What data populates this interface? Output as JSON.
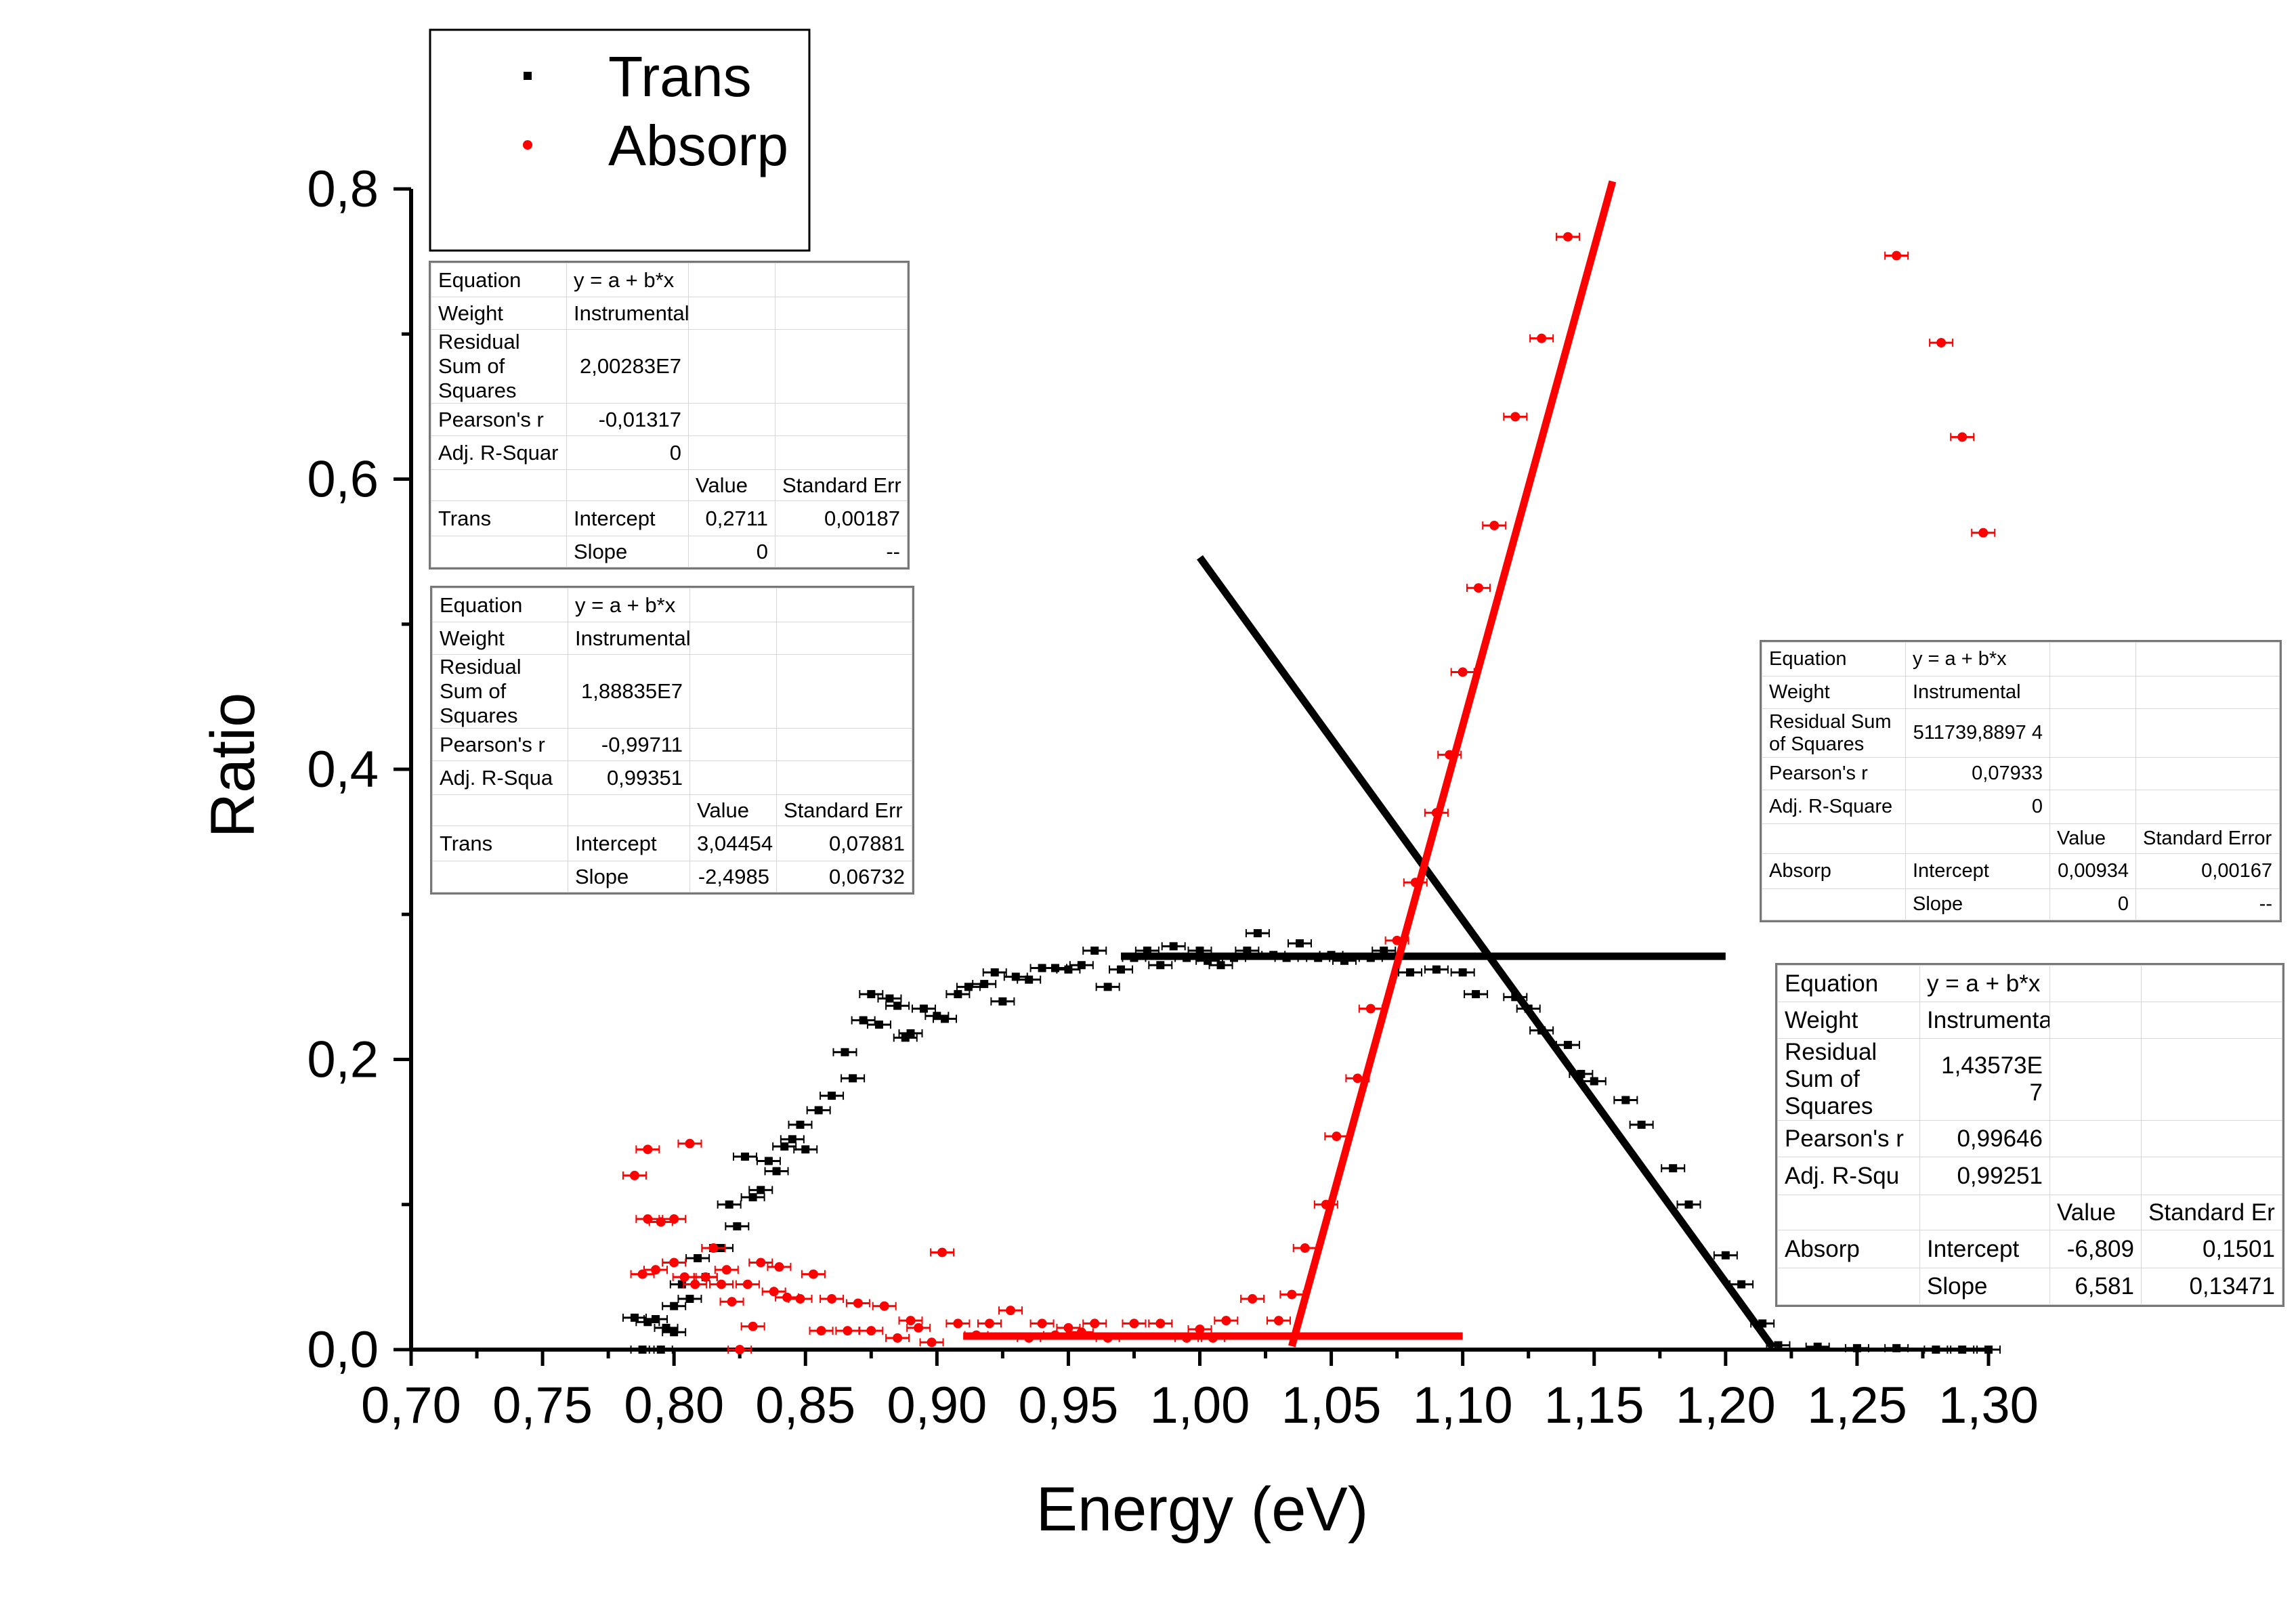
{
  "chart_data": {
    "type": "scatter",
    "title": "",
    "xlabel": "Energy (eV)",
    "ylabel": "Ratio",
    "xlim": [
      0.7,
      1.3
    ],
    "ylim": [
      0.0,
      0.8
    ],
    "x_ticks": [
      {
        "v": 0.7,
        "label": "0,70"
      },
      {
        "v": 0.75,
        "label": "0,75"
      },
      {
        "v": 0.8,
        "label": "0,80"
      },
      {
        "v": 0.85,
        "label": "0,85"
      },
      {
        "v": 0.9,
        "label": "0,90"
      },
      {
        "v": 0.95,
        "label": "0,95"
      },
      {
        "v": 1.0,
        "label": "1,00"
      },
      {
        "v": 1.05,
        "label": "1,05"
      },
      {
        "v": 1.1,
        "label": "1,10"
      },
      {
        "v": 1.15,
        "label": "1,15"
      },
      {
        "v": 1.2,
        "label": "1,20"
      },
      {
        "v": 1.25,
        "label": "1,25"
      },
      {
        "v": 1.3,
        "label": "1,30"
      }
    ],
    "y_ticks": [
      {
        "v": 0.0,
        "label": "0,0"
      },
      {
        "v": 0.2,
        "label": "0,2"
      },
      {
        "v": 0.4,
        "label": "0,4"
      },
      {
        "v": 0.6,
        "label": "0,6"
      },
      {
        "v": 0.8,
        "label": "0,8"
      }
    ],
    "legend": {
      "placement": "top-left",
      "entries": [
        {
          "label": "Trans",
          "color": "#000000"
        },
        {
          "label": "Absorp",
          "color": "#ff0000"
        }
      ]
    },
    "series": [
      {
        "name": "Trans",
        "color": "#000000",
        "points": [
          [
            0.785,
            0.022
          ],
          [
            0.788,
            0.0
          ],
          [
            0.79,
            0.019
          ],
          [
            0.793,
            0.021
          ],
          [
            0.795,
            0.0
          ],
          [
            0.797,
            0.015
          ],
          [
            0.8,
            0.012
          ],
          [
            0.8,
            0.03
          ],
          [
            0.803,
            0.045
          ],
          [
            0.806,
            0.035
          ],
          [
            0.809,
            0.063
          ],
          [
            0.812,
            0.05
          ],
          [
            0.815,
            0.07
          ],
          [
            0.818,
            0.07
          ],
          [
            0.821,
            0.1
          ],
          [
            0.824,
            0.085
          ],
          [
            0.827,
            0.133
          ],
          [
            0.83,
            0.105
          ],
          [
            0.833,
            0.11
          ],
          [
            0.836,
            0.13
          ],
          [
            0.839,
            0.123
          ],
          [
            0.842,
            0.14
          ],
          [
            0.845,
            0.145
          ],
          [
            0.848,
            0.155
          ],
          [
            0.85,
            0.138
          ],
          [
            0.855,
            0.165
          ],
          [
            0.86,
            0.175
          ],
          [
            0.865,
            0.205
          ],
          [
            0.868,
            0.187
          ],
          [
            0.872,
            0.227
          ],
          [
            0.875,
            0.245
          ],
          [
            0.878,
            0.224
          ],
          [
            0.882,
            0.242
          ],
          [
            0.885,
            0.237
          ],
          [
            0.888,
            0.215
          ],
          [
            0.89,
            0.218
          ],
          [
            0.895,
            0.235
          ],
          [
            0.9,
            0.23
          ],
          [
            0.903,
            0.228
          ],
          [
            0.908,
            0.245
          ],
          [
            0.912,
            0.25
          ],
          [
            0.918,
            0.252
          ],
          [
            0.922,
            0.26
          ],
          [
            0.925,
            0.24
          ],
          [
            0.93,
            0.257
          ],
          [
            0.935,
            0.255
          ],
          [
            0.94,
            0.263
          ],
          [
            0.945,
            0.263
          ],
          [
            0.95,
            0.262
          ],
          [
            0.955,
            0.265
          ],
          [
            0.96,
            0.275
          ],
          [
            0.965,
            0.25
          ],
          [
            0.97,
            0.262
          ],
          [
            0.975,
            0.27
          ],
          [
            0.98,
            0.275
          ],
          [
            0.985,
            0.265
          ],
          [
            0.99,
            0.278
          ],
          [
            0.995,
            0.27
          ],
          [
            1.0,
            0.275
          ],
          [
            1.003,
            0.268
          ],
          [
            1.008,
            0.265
          ],
          [
            1.013,
            0.27
          ],
          [
            1.018,
            0.275
          ],
          [
            1.022,
            0.287
          ],
          [
            1.028,
            0.272
          ],
          [
            1.033,
            0.27
          ],
          [
            1.038,
            0.28
          ],
          [
            1.045,
            0.27
          ],
          [
            1.05,
            0.272
          ],
          [
            1.055,
            0.268
          ],
          [
            1.065,
            0.27
          ],
          [
            1.07,
            0.275
          ],
          [
            1.08,
            0.26
          ],
          [
            1.09,
            0.262
          ],
          [
            1.1,
            0.26
          ],
          [
            1.105,
            0.245
          ],
          [
            1.12,
            0.243
          ],
          [
            1.125,
            0.235
          ],
          [
            1.13,
            0.22
          ],
          [
            1.14,
            0.21
          ],
          [
            1.145,
            0.19
          ],
          [
            1.15,
            0.185
          ],
          [
            1.162,
            0.172
          ],
          [
            1.168,
            0.155
          ],
          [
            1.18,
            0.125
          ],
          [
            1.186,
            0.1
          ],
          [
            1.2,
            0.065
          ],
          [
            1.206,
            0.045
          ],
          [
            1.214,
            0.018
          ],
          [
            1.22,
            0.003
          ],
          [
            1.235,
            0.002
          ],
          [
            1.25,
            0.001
          ],
          [
            1.265,
            0.001
          ],
          [
            1.28,
            0.0
          ],
          [
            1.29,
            0.0
          ],
          [
            1.3,
            0.0
          ]
        ]
      },
      {
        "name": "Absorp",
        "color": "#ff0000",
        "points": [
          [
            0.785,
            0.12
          ],
          [
            0.788,
            0.052
          ],
          [
            0.79,
            0.138
          ],
          [
            0.79,
            0.09
          ],
          [
            0.793,
            0.055
          ],
          [
            0.795,
            0.088
          ],
          [
            0.8,
            0.09
          ],
          [
            0.8,
            0.06
          ],
          [
            0.804,
            0.05
          ],
          [
            0.806,
            0.142
          ],
          [
            0.808,
            0.045
          ],
          [
            0.812,
            0.05
          ],
          [
            0.815,
            0.07
          ],
          [
            0.818,
            0.045
          ],
          [
            0.82,
            0.055
          ],
          [
            0.822,
            0.033
          ],
          [
            0.825,
            0.0
          ],
          [
            0.828,
            0.045
          ],
          [
            0.83,
            0.016
          ],
          [
            0.833,
            0.06
          ],
          [
            0.838,
            0.04
          ],
          [
            0.84,
            0.057
          ],
          [
            0.843,
            0.036
          ],
          [
            0.848,
            0.035
          ],
          [
            0.853,
            0.052
          ],
          [
            0.856,
            0.013
          ],
          [
            0.86,
            0.035
          ],
          [
            0.866,
            0.013
          ],
          [
            0.87,
            0.032
          ],
          [
            0.875,
            0.013
          ],
          [
            0.88,
            0.03
          ],
          [
            0.885,
            0.008
          ],
          [
            0.89,
            0.02
          ],
          [
            0.893,
            0.015
          ],
          [
            0.898,
            0.005
          ],
          [
            0.902,
            0.067
          ],
          [
            0.908,
            0.018
          ],
          [
            0.915,
            0.01
          ],
          [
            0.92,
            0.018
          ],
          [
            0.928,
            0.027
          ],
          [
            0.935,
            0.008
          ],
          [
            0.94,
            0.018
          ],
          [
            0.945,
            0.01
          ],
          [
            0.95,
            0.015
          ],
          [
            0.955,
            0.012
          ],
          [
            0.96,
            0.018
          ],
          [
            0.965,
            0.008
          ],
          [
            0.975,
            0.018
          ],
          [
            0.985,
            0.018
          ],
          [
            0.995,
            0.008
          ],
          [
            1.0,
            0.014
          ],
          [
            1.005,
            0.008
          ],
          [
            1.01,
            0.02
          ],
          [
            1.02,
            0.035
          ],
          [
            1.03,
            0.02
          ],
          [
            1.035,
            0.038
          ],
          [
            1.04,
            0.07
          ],
          [
            1.048,
            0.1
          ],
          [
            1.052,
            0.147
          ],
          [
            1.06,
            0.187
          ],
          [
            1.065,
            0.235
          ],
          [
            1.075,
            0.282
          ],
          [
            1.082,
            0.322
          ],
          [
            1.09,
            0.37
          ],
          [
            1.095,
            0.41
          ],
          [
            1.1,
            0.467
          ],
          [
            1.106,
            0.525
          ],
          [
            1.112,
            0.568
          ],
          [
            1.12,
            0.643
          ],
          [
            1.13,
            0.697
          ],
          [
            1.14,
            0.767
          ],
          [
            1.265,
            0.754
          ],
          [
            1.282,
            0.694
          ],
          [
            1.29,
            0.629
          ],
          [
            1.298,
            0.563
          ]
        ]
      }
    ],
    "fits": [
      {
        "name": "Trans",
        "color": "#000000",
        "x": [
          0.97,
          1.2
        ],
        "intercept": 0.2711,
        "slope": 0
      },
      {
        "name": "Trans",
        "color": "#000000",
        "x": [
          1.0,
          1.218
        ],
        "intercept": 3.04454,
        "slope": -2.4985
      },
      {
        "name": "Absorp",
        "color": "#ff0000",
        "x": [
          0.91,
          1.1
        ],
        "intercept": 0.00934,
        "slope": 0
      },
      {
        "name": "Absorp",
        "color": "#ff0000",
        "x": [
          1.035,
          1.157
        ],
        "intercept": -6.809,
        "slope": 6.581
      }
    ],
    "grid": false
  },
  "fit_tables": [
    {
      "id": "trans-flat",
      "rows": [
        [
          "Equation",
          "y = a + b*x",
          "",
          ""
        ],
        [
          "Weight",
          "Instrumental",
          "",
          ""
        ],
        [
          "Residual Sum of Squares",
          "2,00283E7",
          "",
          ""
        ],
        [
          "Pearson's r",
          "-0,01317",
          "",
          ""
        ],
        [
          "Adj. R-Squar",
          "0",
          "",
          ""
        ],
        [
          "",
          "",
          "Value",
          "Standard Err"
        ],
        [
          "Trans",
          "Intercept",
          "0,2711",
          "0,00187"
        ],
        [
          "",
          "Slope",
          "0",
          "--"
        ]
      ]
    },
    {
      "id": "trans-slope",
      "rows": [
        [
          "Equation",
          "y = a + b*x",
          "",
          ""
        ],
        [
          "Weight",
          "Instrumental",
          "",
          ""
        ],
        [
          "Residual Sum of Squares",
          "1,88835E7",
          "",
          ""
        ],
        [
          "Pearson's r",
          "-0,99711",
          "",
          ""
        ],
        [
          "Adj. R-Squa",
          "0,99351",
          "",
          ""
        ],
        [
          "",
          "",
          "Value",
          "Standard Err"
        ],
        [
          "Trans",
          "Intercept",
          "3,04454",
          "0,07881"
        ],
        [
          "",
          "Slope",
          "-2,4985",
          "0,06732"
        ]
      ]
    },
    {
      "id": "absorp-flat",
      "rows": [
        [
          "Equation",
          "y = a + b*x",
          "",
          ""
        ],
        [
          "Weight",
          "Instrumental",
          "",
          ""
        ],
        [
          "Residual Sum of Squares",
          "511739,8897 4",
          "",
          ""
        ],
        [
          "Pearson's r",
          "0,07933",
          "",
          ""
        ],
        [
          "Adj. R-Square",
          "0",
          "",
          ""
        ],
        [
          "",
          "",
          "Value",
          "Standard Error"
        ],
        [
          "Absorp",
          "Intercept",
          "0,00934",
          "0,00167"
        ],
        [
          "",
          "Slope",
          "0",
          "--"
        ]
      ]
    },
    {
      "id": "absorp-slope",
      "rows": [
        [
          "Equation",
          "y = a + b*x",
          "",
          ""
        ],
        [
          "Weight",
          "Instrumental",
          "",
          ""
        ],
        [
          "Residual Sum of Squares",
          "1,43573E 7",
          "",
          ""
        ],
        [
          "Pearson's r",
          "0,99646",
          "",
          ""
        ],
        [
          "Adj. R-Squ",
          "0,99251",
          "",
          ""
        ],
        [
          "",
          "",
          "Value",
          "Standard Er"
        ],
        [
          "Absorp",
          "Intercept",
          "-6,809",
          "0,1501"
        ],
        [
          "",
          "Slope",
          "6,581",
          "0,13471"
        ]
      ]
    }
  ]
}
